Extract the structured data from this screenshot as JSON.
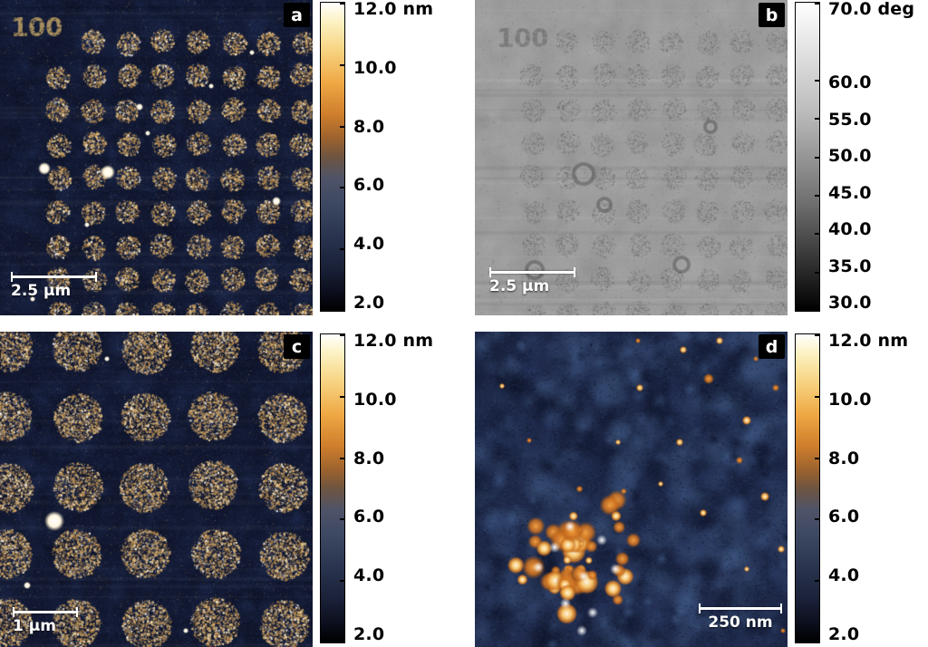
{
  "figure": {
    "name": "AFM four-panel figure (height and phase images with colorbars)",
    "panels": [
      {
        "key": "a",
        "label": "a",
        "scalebar": "2.5 µm",
        "overlay": "100",
        "colorbar": "height"
      },
      {
        "key": "b",
        "label": "b",
        "scalebar": "2.5 µm",
        "overlay": "100",
        "colorbar": "phase"
      },
      {
        "key": "c",
        "label": "c",
        "scalebar": "1 µm",
        "overlay": "",
        "colorbar": "height"
      },
      {
        "key": "d",
        "label": "d",
        "scalebar": "250 nm",
        "overlay": "",
        "colorbar": "height"
      }
    ],
    "colorbars": {
      "height": {
        "unit": "nm",
        "min": 2,
        "max": 12,
        "ticks": [
          "12.0",
          "10.0",
          "8.0",
          "6.0",
          "4.0",
          "2.0"
        ],
        "values": [
          12,
          10,
          8,
          6,
          4,
          2
        ]
      },
      "phase": {
        "unit": "deg",
        "min": 30,
        "max": 70,
        "ticks": [
          "70.0",
          "60.0",
          "55.0",
          "50.0",
          "45.0",
          "40.0",
          "35.0",
          "30.0"
        ],
        "values": [
          70,
          60,
          55,
          50,
          45,
          40,
          35,
          30
        ]
      }
    }
  }
}
